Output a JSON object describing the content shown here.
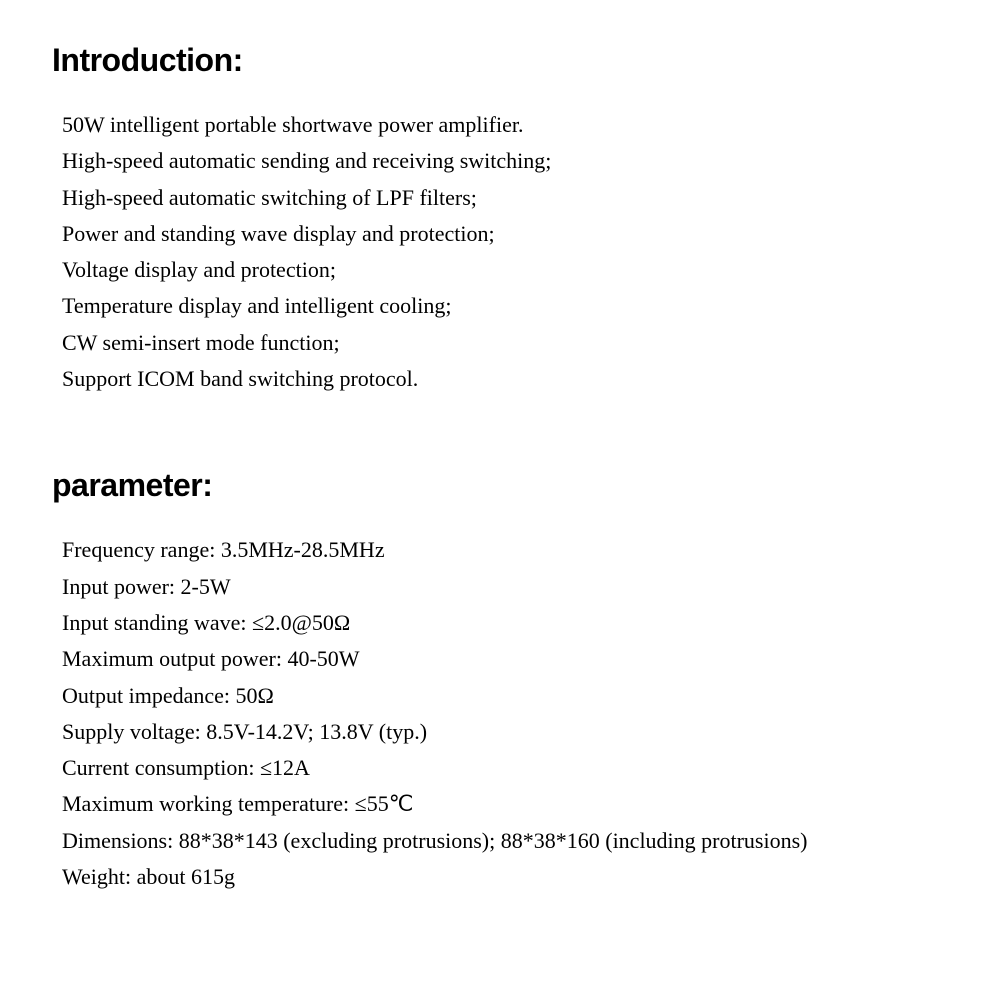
{
  "introduction": {
    "heading": "Introduction:",
    "lines": [
      "50W intelligent portable shortwave power amplifier.",
      "High-speed automatic sending and receiving switching;",
      "High-speed automatic switching of LPF filters;",
      "Power and standing wave display and protection;",
      "Voltage display and protection;",
      "Temperature display and intelligent cooling;",
      "CW semi-insert mode function;",
      "Support ICOM band switching protocol."
    ]
  },
  "parameter": {
    "heading": "parameter:",
    "lines": [
      "Frequency range: 3.5MHz-28.5MHz",
      "Input power: 2-5W",
      "Input standing wave: ≤2.0@50Ω",
      "Maximum output power: 40-50W",
      "Output impedance: 50Ω",
      "Supply voltage: 8.5V-14.2V; 13.8V (typ.)",
      "Current consumption: ≤12A",
      "Maximum working temperature: ≤55℃",
      "Dimensions: 88*38*143 (excluding protrusions); 88*38*160 (including protrusions)",
      "Weight: about 615g"
    ]
  },
  "style": {
    "heading_font": "Arial",
    "heading_fontsize_pt": 24,
    "heading_weight": 900,
    "body_font": "Times New Roman",
    "body_fontsize_pt": 16,
    "body_line_height": 1.65,
    "text_color": "#000000",
    "background_color": "#ffffff"
  }
}
